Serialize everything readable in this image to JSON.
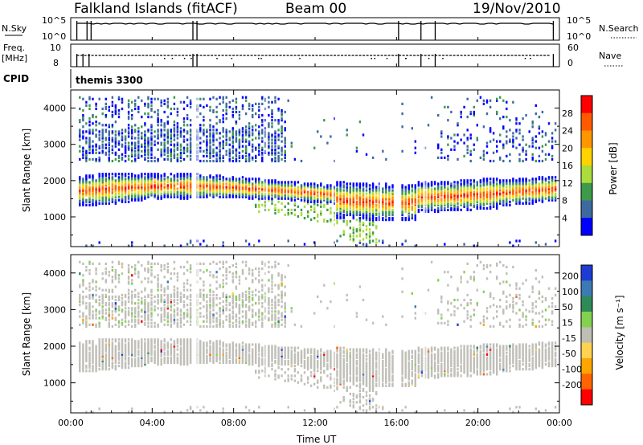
{
  "header": {
    "title": "Falkland Islands (fitACF)",
    "beam": "Beam 00",
    "date": "19/Nov/2010",
    "program": "themis 3300"
  },
  "params": {
    "nsky_label": "N.Sky",
    "nsearch_label": "N.Search",
    "nsky_ticks": [
      "10^5",
      "10^0"
    ],
    "nsearch_ticks": [
      "10^5",
      "10^0"
    ],
    "freq_label_1": "Freq.",
    "freq_label_2": "[MHz]",
    "freq_ticks": [
      "10",
      "8"
    ],
    "nave_label": "Nave",
    "nave_ticks": [
      "60",
      "0"
    ],
    "cpid_label": "CPID"
  },
  "chart_data": [
    {
      "type": "heatmap",
      "name": "power",
      "ylabel": "Slant Range [km]",
      "xlabel": "Time UT",
      "x_ticks": [
        "00:00",
        "04:00",
        "08:00",
        "12:00",
        "16:00",
        "20:00",
        "00:00"
      ],
      "xlim_hours": [
        0,
        24
      ],
      "y_ticks": [
        1000,
        2000,
        3000,
        4000
      ],
      "ylim_km": [
        180,
        4500
      ],
      "colorbar_label": "Power [dB]",
      "colorbar_ticks": [
        "28",
        "24",
        "20",
        "16",
        "12",
        "8",
        "4"
      ],
      "colorbar_colors": [
        "#ff0000",
        "#ff5a00",
        "#ff9600",
        "#ffd200",
        "#aadc3c",
        "#3c9a4a",
        "#3c6aa0",
        "#0000ff"
      ],
      "echo_regions": [
        {
          "from_h": 0.2,
          "to_h": 23.8,
          "band": "main ionospheric scatter",
          "km_center": 1700
        },
        {
          "from_h": 0.5,
          "to_h": 10.5,
          "band": "upper scatter",
          "km_center": 3200
        }
      ]
    },
    {
      "type": "heatmap",
      "name": "velocity",
      "ylabel": "Slant Range [km]",
      "xlabel": "Time UT",
      "x_ticks": [
        "00:00",
        "04:00",
        "08:00",
        "12:00",
        "16:00",
        "20:00",
        "00:00"
      ],
      "xlim_hours": [
        0,
        24
      ],
      "y_ticks": [
        1000,
        2000,
        3000,
        4000
      ],
      "ylim_km": [
        180,
        4500
      ],
      "colorbar_label": "Velocity [m s⁻¹]",
      "colorbar_ticks": [
        "200",
        "100",
        "50",
        "15",
        "-15",
        "-50",
        "-100",
        "-200"
      ],
      "colorbar_colors": [
        "#1e3cd2",
        "#3c7ab4",
        "#2e8b57",
        "#82d250",
        "#bebeb4",
        "#ffd250",
        "#ffa500",
        "#ff6400",
        "#ff0000"
      ],
      "ground_scatter_color": "#c0bfb8"
    }
  ]
}
